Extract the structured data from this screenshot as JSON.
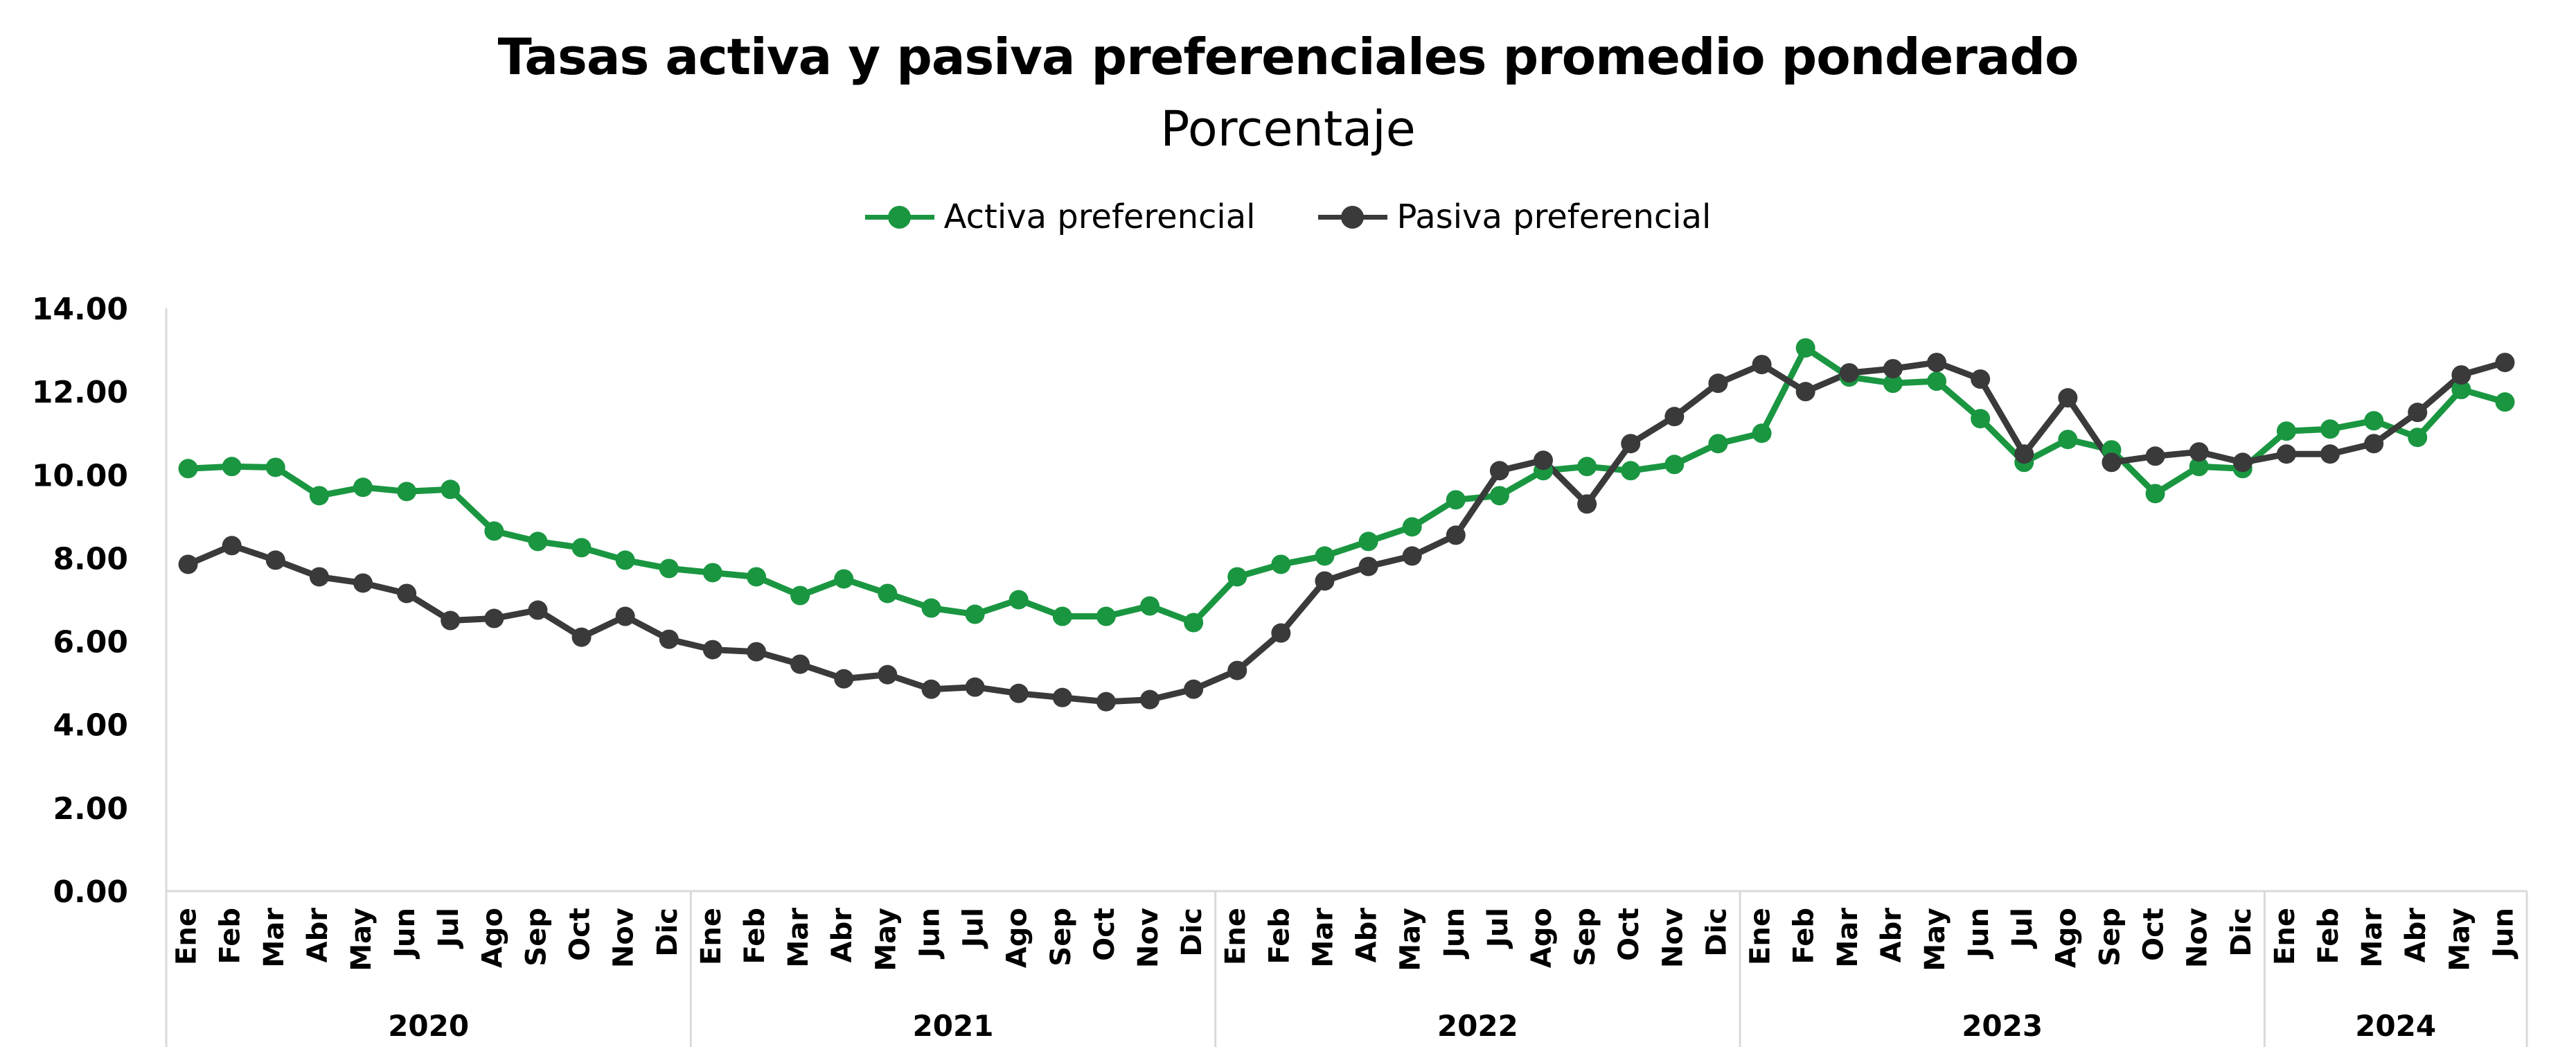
{
  "chart_data": {
    "type": "line",
    "title": "Tasas activa y pasiva preferenciales promedio ponderado",
    "subtitle": "Porcentaje",
    "ylim": [
      0,
      14
    ],
    "yticks": [
      "0.00",
      "2.00",
      "4.00",
      "6.00",
      "8.00",
      "10.00",
      "12.00",
      "14.00"
    ],
    "months": [
      "Ene",
      "Feb",
      "Mar",
      "Abr",
      "May",
      "Jun",
      "Jul",
      "Ago",
      "Sep",
      "Oct",
      "Nov",
      "Dic",
      "Ene",
      "Feb",
      "Mar",
      "Abr",
      "May",
      "Jun",
      "Jul",
      "Ago",
      "Sep",
      "Oct",
      "Nov",
      "Dic",
      "Ene",
      "Feb",
      "Mar",
      "Abr",
      "May",
      "Jun",
      "Jul",
      "Ago",
      "Sep",
      "Oct",
      "Nov",
      "Dic",
      "Ene",
      "Feb",
      "Mar",
      "Abr",
      "May",
      "Jun",
      "Jul",
      "Ago",
      "Sep",
      "Oct",
      "Nov",
      "Dic",
      "Ene",
      "Feb",
      "Mar",
      "Abr",
      "May",
      "Jun"
    ],
    "years": [
      {
        "label": "2020",
        "start": 0,
        "count": 12
      },
      {
        "label": "2021",
        "start": 12,
        "count": 12
      },
      {
        "label": "2022",
        "start": 24,
        "count": 12
      },
      {
        "label": "2023",
        "start": 36,
        "count": 12
      },
      {
        "label": "2024",
        "start": 48,
        "count": 6
      }
    ],
    "series": [
      {
        "name": "Activa preferencial",
        "color": "#1a9641",
        "values": [
          10.15,
          10.2,
          10.18,
          9.5,
          9.7,
          9.6,
          9.65,
          8.65,
          8.4,
          8.25,
          7.95,
          7.75,
          7.65,
          7.55,
          7.1,
          7.5,
          7.15,
          6.8,
          6.65,
          7.0,
          6.6,
          6.6,
          6.85,
          6.45,
          7.55,
          7.85,
          8.05,
          8.4,
          8.75,
          9.4,
          9.5,
          10.1,
          10.2,
          10.1,
          10.25,
          10.75,
          11.0,
          13.05,
          12.35,
          12.2,
          12.25,
          11.35,
          10.3,
          10.85,
          10.6,
          9.55,
          10.2,
          10.15,
          11.05,
          11.1,
          11.3,
          10.9,
          12.05,
          11.75
        ]
      },
      {
        "name": "Pasiva preferencial",
        "color": "#3a3a3a",
        "values": [
          7.85,
          8.3,
          7.95,
          7.55,
          7.4,
          7.15,
          6.5,
          6.55,
          6.75,
          6.1,
          6.6,
          6.05,
          5.8,
          5.75,
          5.45,
          5.1,
          5.2,
          4.85,
          4.9,
          4.75,
          4.65,
          4.55,
          4.6,
          4.85,
          5.3,
          6.2,
          7.45,
          7.8,
          8.05,
          8.55,
          10.1,
          10.35,
          9.3,
          10.75,
          11.4,
          12.2,
          12.65,
          12.0,
          12.45,
          12.55,
          12.7,
          12.3,
          10.5,
          11.85,
          10.3,
          10.45,
          10.55,
          10.3,
          10.5,
          10.5,
          10.75,
          11.5,
          12.4,
          12.7
        ]
      }
    ]
  }
}
